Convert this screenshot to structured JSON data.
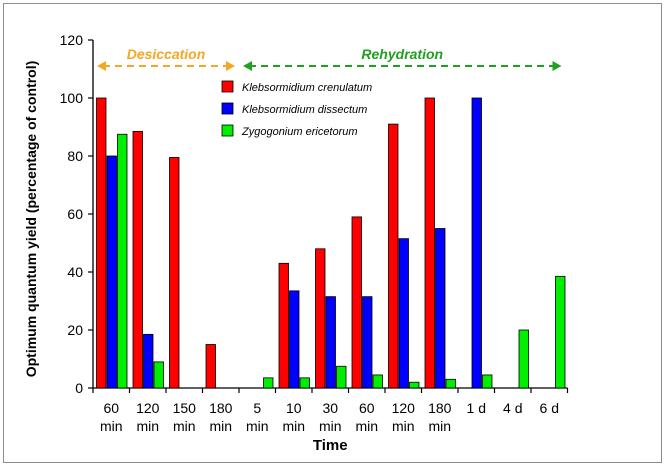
{
  "chart_data": {
    "type": "bar",
    "title": "",
    "xlabel": "Time",
    "ylabel": "Optimum quantum yield (percentage of control)",
    "ylim": [
      0,
      120
    ],
    "yticks": [
      0,
      20,
      40,
      60,
      80,
      100,
      120
    ],
    "grid": false,
    "legend_placement": "top-center",
    "categories": [
      [
        "60",
        "min"
      ],
      [
        "120",
        "min"
      ],
      [
        "150",
        "min"
      ],
      [
        "180",
        "min"
      ],
      [
        "5",
        "min"
      ],
      [
        "10",
        "min"
      ],
      [
        "30",
        "min"
      ],
      [
        "60",
        "min"
      ],
      [
        "120",
        "min"
      ],
      [
        "180",
        "min"
      ],
      [
        "1 d"
      ],
      [
        "4 d"
      ],
      [
        "6 d"
      ]
    ],
    "series": [
      {
        "name": "Klebsormidium crenulatum",
        "color": "#ff0000",
        "values": [
          100,
          88.5,
          79.5,
          15,
          0,
          43,
          48,
          59,
          91,
          100,
          null,
          null,
          null
        ]
      },
      {
        "name": "Klebsormidium dissectum",
        "color": "#0000ff",
        "values": [
          80,
          18.5,
          0,
          0,
          0,
          33.5,
          31.5,
          31.5,
          51.5,
          55,
          100,
          null,
          null
        ]
      },
      {
        "name": "Zygogonium ericetorum",
        "color": "#00ee00",
        "values": [
          87.5,
          9,
          0,
          0,
          3.5,
          3.5,
          7.5,
          4.5,
          2,
          3,
          4.5,
          20,
          38.5
        ]
      }
    ],
    "annotations": [
      {
        "text": "Desiccation",
        "color": "#f5a623",
        "from_category": 0,
        "to_category": 3
      },
      {
        "text": "Rehydration",
        "color": "#22a022",
        "from_category": 4,
        "to_category": 12
      }
    ]
  }
}
